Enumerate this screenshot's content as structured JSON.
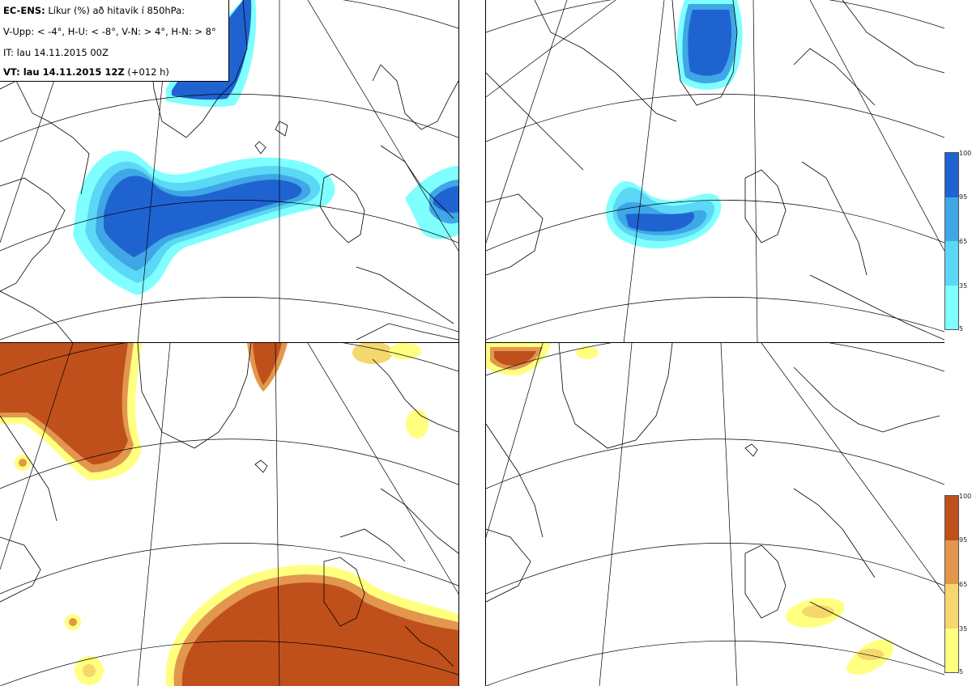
{
  "info": {
    "model": "EC-ENS:",
    "title": "Líkur (%) að hitavik í 850hPa:",
    "legend_line": "V-Upp: < -4°, H-U: < -8°, V-N: > 4°, H-N: > 8°",
    "it_line": "IT: lau 14.11.2015 00Z",
    "vt_label": "VT: lau 14.11.2015 12Z",
    "vt_lead": "(+012 h)"
  },
  "colors": {
    "cold": [
      "#7fffff",
      "#5ad8f5",
      "#3fa7e6",
      "#1f63d1"
    ],
    "warm": [
      "#ffff80",
      "#f5d76e",
      "#e3964d",
      "#c0501b"
    ],
    "land": "#000000",
    "grid": "#000000"
  },
  "colorbar_ticks": [
    "100",
    "95",
    "65",
    "35",
    "5"
  ],
  "panels": [
    {
      "id": "v-upp",
      "variable": "cold",
      "threshold": "< -4°"
    },
    {
      "id": "h-upp",
      "variable": "cold",
      "threshold": "< -8°"
    },
    {
      "id": "v-n",
      "variable": "warm",
      "threshold": "> 4°"
    },
    {
      "id": "h-n",
      "variable": "warm",
      "threshold": "> 8°"
    }
  ]
}
